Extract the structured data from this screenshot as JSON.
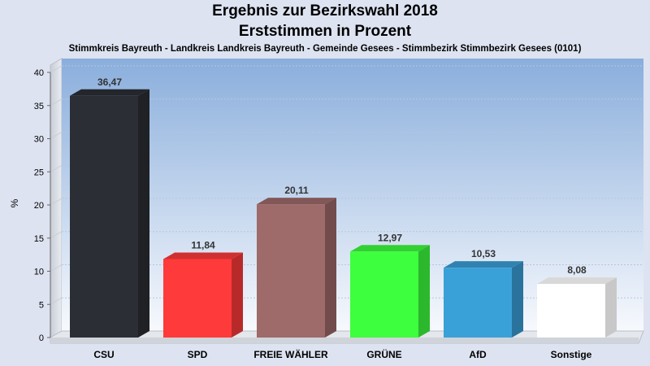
{
  "chart_data": {
    "type": "bar",
    "title": "Ergebnis zur Bezirkswahl 2018",
    "title2": "Erststimmen in Prozent",
    "subtitle": "Stimmkreis Bayreuth - Landkreis Landkreis Bayreuth - Gemeinde Gesees - Stimmbezirk Stimmbezirk Gesees (0101)",
    "ylabel": "%",
    "ylim": [
      0,
      40
    ],
    "yticks": [
      0,
      5,
      10,
      15,
      20,
      25,
      30,
      35,
      40
    ],
    "grid": true,
    "categories": [
      "CSU",
      "SPD",
      "FREIE WÄHLER",
      "GRÜNE",
      "AfD",
      "Sonstige"
    ],
    "values": [
      36.47,
      11.84,
      20.11,
      12.97,
      10.53,
      8.08
    ],
    "value_labels": [
      "36,47",
      "11,84",
      "20,11",
      "12,97",
      "10,53",
      "8,08"
    ],
    "colors": [
      "#2b2e34",
      "#ff3a3a",
      "#9e6a6a",
      "#3dff3d",
      "#3aa0d8",
      "#ffffff"
    ]
  }
}
